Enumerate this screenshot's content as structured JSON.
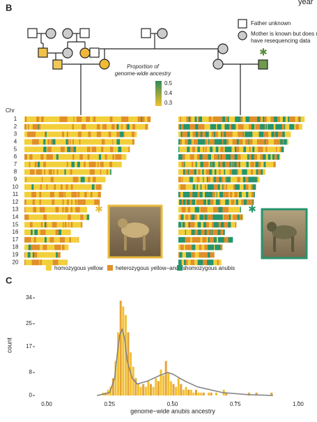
{
  "panel_b": {
    "label": "B",
    "corner_text": "year",
    "key": {
      "father_unknown": "Father unknown",
      "mother_line1": "Mother is known but does not",
      "mother_line2": "have resequencing data"
    },
    "scale": {
      "title_line1": "Proportion of",
      "title_line2": "genome-wide ancestry",
      "ticks": [
        0.5,
        0.4,
        0.3
      ],
      "low_color": "#f2c12e",
      "high_color": "#2e8b57"
    },
    "chr_header": "Chr",
    "chromosomes": [
      {
        "name": "1",
        "length": 218
      },
      {
        "name": "2",
        "length": 214
      },
      {
        "name": "3",
        "length": 194
      },
      {
        "name": "4",
        "length": 190
      },
      {
        "name": "5",
        "length": 182
      },
      {
        "name": "6",
        "length": 176
      },
      {
        "name": "7",
        "length": 168
      },
      {
        "name": "8",
        "length": 150
      },
      {
        "name": "9",
        "length": 140
      },
      {
        "name": "10",
        "length": 134
      },
      {
        "name": "11",
        "length": 132
      },
      {
        "name": "12",
        "length": 130
      },
      {
        "name": "13",
        "length": 108
      },
      {
        "name": "14",
        "length": 112
      },
      {
        "name": "15",
        "length": 100
      },
      {
        "name": "16",
        "length": 80
      },
      {
        "name": "17",
        "length": 94
      },
      {
        "name": "18",
        "length": 76
      },
      {
        "name": "19",
        "length": 62
      },
      {
        "name": "20",
        "length": 74
      }
    ],
    "legend": [
      {
        "name": "homozygous yellow",
        "color": "#f2d03b"
      },
      {
        "name": "heterozygous yellow−anubis",
        "color": "#e08f2a"
      },
      {
        "name": "homozygous anubis",
        "color": "#26946c"
      }
    ]
  },
  "chart_data": {
    "type": "histogram",
    "label": "C",
    "x_label": "genome−wide anubis ancestry",
    "y_label": "count",
    "color": "#f2c12e",
    "bins": [
      0.22,
      0.23,
      0.24,
      0.25,
      0.26,
      0.27,
      0.28,
      0.29,
      0.3,
      0.31,
      0.32,
      0.33,
      0.34,
      0.35,
      0.36,
      0.37,
      0.38,
      0.39,
      0.4,
      0.41,
      0.42,
      0.43,
      0.44,
      0.45,
      0.46,
      0.47,
      0.48,
      0.49,
      0.5,
      0.51,
      0.52,
      0.53,
      0.54,
      0.55,
      0.56,
      0.57,
      0.58,
      0.59,
      0.6,
      0.61,
      0.62,
      0.63,
      0.64,
      0.65,
      0.66,
      0.67,
      0.68,
      0.69,
      0.7,
      0.71,
      0.72,
      0.73,
      0.74,
      0.75,
      0.76,
      0.77,
      0.78,
      0.79,
      0.8,
      0.81,
      0.82,
      0.83,
      0.84,
      0.85,
      0.86,
      0.87,
      0.88,
      0.89,
      0.9,
      0.91
    ],
    "counts": [
      1,
      1,
      2,
      3,
      6,
      12,
      22,
      33,
      31,
      28,
      22,
      15,
      10,
      6,
      4,
      3,
      4,
      3,
      5,
      4,
      3,
      6,
      5,
      9,
      7,
      12,
      8,
      5,
      4,
      3,
      6,
      4,
      2,
      3,
      2,
      2,
      1,
      2,
      1,
      1,
      1,
      0,
      1,
      1,
      0,
      1,
      0,
      0,
      2,
      1,
      0,
      0,
      0,
      0,
      0,
      0,
      0,
      0,
      1,
      0,
      0,
      1,
      0,
      0,
      0,
      0,
      0,
      1,
      0
    ],
    "density": {
      "color": "#808080",
      "x": [
        0.2,
        0.25,
        0.27,
        0.28,
        0.29,
        0.3,
        0.31,
        0.32,
        0.34,
        0.36,
        0.4,
        0.45,
        0.48,
        0.5,
        0.55,
        0.6,
        0.7,
        0.8,
        0.9
      ],
      "y": [
        0,
        1,
        6,
        14,
        21,
        23,
        20,
        12,
        6,
        4,
        5,
        7,
        8,
        7.5,
        5,
        3,
        1,
        0.3,
        0
      ]
    },
    "xlim": [
      0,
      1
    ],
    "xticks": [
      {
        "value": 0,
        "label": "0.00"
      },
      {
        "value": 0.25,
        "label": "0.25"
      },
      {
        "value": 0.5,
        "label": "0.50"
      },
      {
        "value": 0.75,
        "label": "0.75"
      },
      {
        "value": 1,
        "label": "1.00"
      }
    ],
    "ylim": [
      0,
      34
    ],
    "yticks": [
      0,
      8,
      17,
      25,
      34
    ]
  }
}
